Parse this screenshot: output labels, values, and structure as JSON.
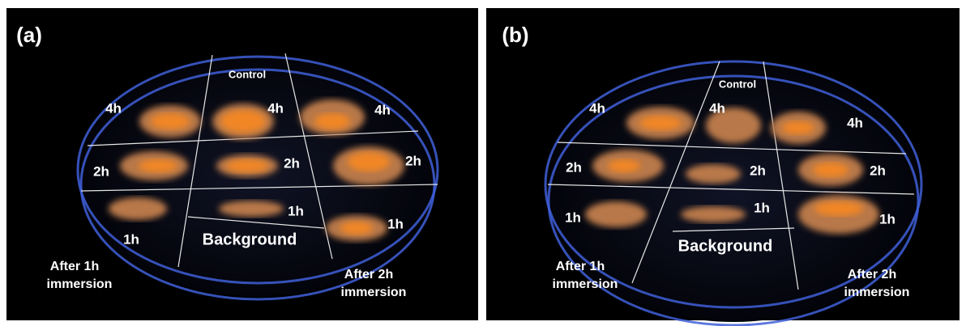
{
  "panels": [
    {
      "label": "(a)",
      "section_labels": [
        "Control",
        "4h",
        "4h",
        "4h",
        "2h",
        "2h",
        "2h",
        "1h",
        "1h",
        "1h",
        "Background"
      ],
      "captions": [
        [
          "After 1h",
          "immersion"
        ],
        [
          "After 2h",
          "immersion"
        ]
      ]
    },
    {
      "label": "(b)",
      "section_labels": [
        "Control",
        "4h",
        "4h",
        "4h",
        "2h",
        "2h",
        "2h",
        "1h",
        "1h",
        "1h",
        "Background"
      ],
      "captions": [
        [
          "After 1h",
          "immersion"
        ],
        [
          "After 2h",
          "immersion"
        ]
      ]
    }
  ]
}
